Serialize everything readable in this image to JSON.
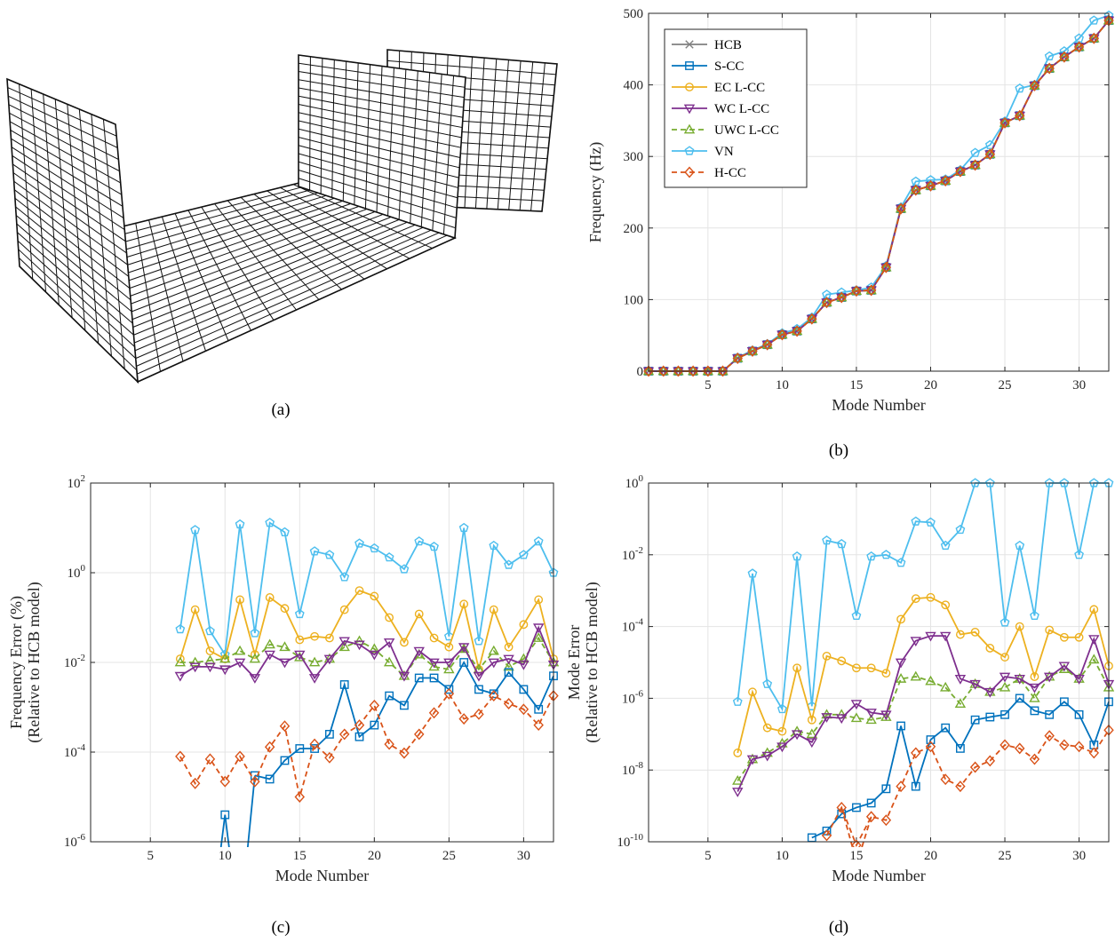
{
  "captions": {
    "a": "(a)",
    "b": "(b)",
    "c": "(c)",
    "d": "(d)"
  },
  "chart_data": [
    {
      "id": "b",
      "type": "line",
      "xlabel": "Mode Number",
      "ylabel": "Frequency (Hz)",
      "xlim": [
        1,
        32
      ],
      "ylim": [
        0,
        500
      ],
      "xticks": [
        5,
        10,
        15,
        20,
        25,
        30
      ],
      "yticks": [
        0,
        100,
        200,
        300,
        400,
        500
      ],
      "grid": true,
      "legend_position": "top-left",
      "x": [
        1,
        2,
        3,
        4,
        5,
        6,
        7,
        8,
        9,
        10,
        11,
        12,
        13,
        14,
        15,
        16,
        17,
        18,
        19,
        20,
        21,
        22,
        23,
        24,
        25,
        26,
        27,
        28,
        29,
        30,
        31,
        32
      ],
      "series": [
        {
          "name": "HCB",
          "color": "#808080",
          "marker": "x",
          "dash": false,
          "values": [
            0,
            0,
            0,
            0,
            0,
            0,
            18,
            28,
            37,
            51,
            56,
            73,
            96,
            103,
            112,
            113,
            145,
            227,
            253,
            259,
            266,
            279,
            288,
            303,
            347,
            357,
            399,
            423,
            439,
            453,
            465,
            490
          ]
        },
        {
          "name": "S-CC",
          "color": "#0072bd",
          "marker": "square",
          "dash": false,
          "values": [
            0,
            0,
            0,
            0,
            0,
            0,
            18,
            28,
            37,
            51,
            56,
            73,
            96,
            103,
            112,
            113,
            145,
            227,
            253,
            259,
            266,
            279,
            288,
            303,
            347,
            357,
            399,
            423,
            439,
            453,
            465,
            490
          ]
        },
        {
          "name": "EC L-CC",
          "color": "#edb120",
          "marker": "circle",
          "dash": false,
          "values": [
            0,
            0,
            0,
            0,
            0,
            0,
            18,
            28,
            37,
            51,
            56,
            73,
            96,
            103,
            112,
            113,
            145,
            227,
            253,
            259,
            266,
            279,
            288,
            303,
            347,
            357,
            399,
            423,
            439,
            453,
            465,
            490
          ]
        },
        {
          "name": "WC L-CC",
          "color": "#7e2f8e",
          "marker": "triangle-down",
          "dash": false,
          "values": [
            0,
            0,
            0,
            0,
            0,
            0,
            18,
            28,
            37,
            51,
            56,
            73,
            96,
            103,
            112,
            113,
            145,
            227,
            253,
            259,
            266,
            279,
            288,
            303,
            347,
            357,
            399,
            423,
            439,
            453,
            465,
            490
          ]
        },
        {
          "name": "UWC L-CC",
          "color": "#77ac30",
          "marker": "triangle-up",
          "dash": true,
          "values": [
            0,
            0,
            0,
            0,
            0,
            0,
            18,
            28,
            37,
            51,
            56,
            73,
            96,
            103,
            112,
            113,
            145,
            227,
            253,
            259,
            266,
            279,
            288,
            303,
            347,
            357,
            399,
            423,
            439,
            453,
            465,
            490
          ]
        },
        {
          "name": "VN",
          "color": "#4dbeee",
          "marker": "pentagon",
          "dash": false,
          "values": [
            0,
            0,
            0,
            0,
            0,
            0,
            19,
            29,
            38,
            53,
            59,
            75,
            107,
            110,
            113,
            117,
            147,
            229,
            265,
            267,
            268,
            281,
            305,
            316,
            349,
            395,
            400,
            440,
            447,
            465,
            490,
            497
          ]
        },
        {
          "name": "H-CC",
          "color": "#d95319",
          "marker": "diamond",
          "dash": true,
          "values": [
            0,
            0,
            0,
            0,
            0,
            0,
            18,
            28,
            37,
            51,
            56,
            73,
            96,
            103,
            112,
            113,
            145,
            227,
            253,
            259,
            266,
            279,
            288,
            303,
            347,
            357,
            399,
            423,
            439,
            453,
            465,
            490
          ]
        }
      ]
    },
    {
      "id": "c",
      "type": "line",
      "xlabel": "Mode Number",
      "ylabel": "Frequency Error (%)",
      "ylabel2": "(Relative to HCB model)",
      "yscale": "log",
      "xlim": [
        1,
        32
      ],
      "ylim": [
        1e-06,
        100
      ],
      "xticks": [
        5,
        10,
        15,
        20,
        25,
        30
      ],
      "yticks": [
        -6,
        -4,
        -2,
        0,
        2
      ],
      "grid": true,
      "x": [
        7,
        8,
        9,
        10,
        11,
        12,
        13,
        14,
        15,
        16,
        17,
        18,
        19,
        20,
        21,
        22,
        23,
        24,
        25,
        26,
        27,
        28,
        29,
        30,
        31,
        32
      ],
      "series": [
        {
          "name": "S-CC",
          "color": "#0072bd",
          "marker": "square",
          "dash": false,
          "values": [
            null,
            null,
            null,
            4e-06,
            null,
            3e-05,
            2.5e-05,
            6.5e-05,
            0.00012,
            0.00012,
            0.00025,
            0.0032,
            0.00022,
            0.0004,
            0.0018,
            0.0011,
            0.0045,
            0.0045,
            0.0025,
            0.01,
            0.0025,
            0.002,
            0.006,
            0.0025,
            0.0009,
            0.005
          ]
        },
        {
          "name": "EC L-CC",
          "color": "#edb120",
          "marker": "circle",
          "dash": false,
          "values": [
            0.012,
            0.15,
            0.018,
            0.012,
            0.25,
            0.015,
            0.28,
            0.16,
            0.032,
            0.038,
            0.035,
            0.15,
            0.4,
            0.3,
            0.1,
            0.028,
            0.12,
            0.035,
            0.022,
            0.2,
            0.007,
            0.15,
            0.022,
            0.07,
            0.25,
            0.012
          ]
        },
        {
          "name": "WC L-CC",
          "color": "#7e2f8e",
          "marker": "triangle-down",
          "dash": false,
          "values": [
            0.005,
            0.008,
            0.008,
            0.007,
            0.01,
            0.0045,
            0.015,
            0.01,
            0.015,
            0.0045,
            0.012,
            0.03,
            0.025,
            0.015,
            0.028,
            0.005,
            0.018,
            0.01,
            0.01,
            0.022,
            0.005,
            0.01,
            0.012,
            0.009,
            0.06,
            0.009
          ]
        },
        {
          "name": "UWC L-CC",
          "color": "#77ac30",
          "marker": "triangle-up",
          "dash": true,
          "values": [
            0.01,
            0.01,
            0.011,
            0.012,
            0.018,
            0.012,
            0.025,
            0.022,
            0.013,
            0.01,
            0.012,
            0.022,
            0.03,
            0.02,
            0.01,
            0.005,
            0.015,
            0.008,
            0.007,
            0.02,
            0.007,
            0.018,
            0.008,
            0.012,
            0.035,
            0.01
          ]
        },
        {
          "name": "VN",
          "color": "#4dbeee",
          "marker": "pentagon",
          "dash": false,
          "values": [
            0.055,
            9,
            0.05,
            0.015,
            12,
            0.045,
            13,
            8,
            0.12,
            3,
            2.5,
            0.8,
            4.5,
            3.5,
            2.2,
            1.2,
            5,
            3.8,
            0.038,
            10,
            0.03,
            4,
            1.5,
            2.5,
            5,
            1
          ]
        },
        {
          "name": "H-CC",
          "color": "#d95319",
          "marker": "diamond",
          "dash": true,
          "values": [
            8e-05,
            2e-05,
            7e-05,
            2.2e-05,
            8e-05,
            2.2e-05,
            0.00013,
            0.00038,
            1e-05,
            0.00015,
            7.5e-05,
            0.00025,
            0.0004,
            0.0011,
            0.00015,
            9.5e-05,
            0.00025,
            0.00075,
            0.002,
            0.00055,
            0.0007,
            0.0018,
            0.0012,
            0.0009,
            0.0004,
            0.0018
          ]
        }
      ]
    },
    {
      "id": "d",
      "type": "line",
      "xlabel": "Mode Number",
      "ylabel": "Mode Error",
      "ylabel2": "(Relative to HCB model)",
      "yscale": "log",
      "xlim": [
        1,
        32
      ],
      "ylim": [
        1e-10,
        1
      ],
      "xticks": [
        5,
        10,
        15,
        20,
        25,
        30
      ],
      "yticks": [
        -10,
        -8,
        -6,
        -4,
        -2,
        0
      ],
      "grid": true,
      "x": [
        7,
        8,
        9,
        10,
        11,
        12,
        13,
        14,
        15,
        16,
        17,
        18,
        19,
        20,
        21,
        22,
        23,
        24,
        25,
        26,
        27,
        28,
        29,
        30,
        31,
        32
      ],
      "series": [
        {
          "name": "S-CC",
          "color": "#0072bd",
          "marker": "square",
          "dash": false,
          "values": [
            null,
            null,
            null,
            null,
            null,
            1.3e-10,
            2e-10,
            6e-10,
            9e-10,
            1.2e-09,
            3e-09,
            1.7e-07,
            3.5e-09,
            7e-08,
            1.5e-07,
            4e-08,
            2.5e-07,
            3e-07,
            3.5e-07,
            1e-06,
            4.5e-07,
            3.5e-07,
            8e-07,
            3.5e-07,
            5e-08,
            8e-07
          ]
        },
        {
          "name": "EC L-CC",
          "color": "#edb120",
          "marker": "circle",
          "dash": false,
          "values": [
            3e-08,
            1.5e-06,
            1.5e-07,
            1.2e-07,
            7e-06,
            2.5e-07,
            1.5e-05,
            1.1e-05,
            7e-06,
            7e-06,
            5e-06,
            0.00016,
            0.0006,
            0.00065,
            0.0004,
            6e-05,
            7e-05,
            2.5e-05,
            1.4e-05,
            0.0001,
            4e-06,
            8e-05,
            5e-05,
            5e-05,
            0.0003,
            8e-06
          ]
        },
        {
          "name": "WC L-CC",
          "color": "#7e2f8e",
          "marker": "triangle-down",
          "dash": false,
          "values": [
            2.5e-09,
            2e-08,
            2.5e-08,
            4.5e-08,
            1e-07,
            6e-08,
            3e-07,
            2.8e-07,
            7e-07,
            4e-07,
            3.5e-07,
            1e-05,
            4e-05,
            5.5e-05,
            5.5e-05,
            3.5e-06,
            2.5e-06,
            1.5e-06,
            4e-06,
            3.5e-06,
            2e-06,
            4e-06,
            8e-06,
            3.5e-06,
            4.5e-05,
            2.5e-06
          ]
        },
        {
          "name": "UWC L-CC",
          "color": "#77ac30",
          "marker": "triangle-up",
          "dash": true,
          "values": [
            5e-09,
            2e-08,
            3e-08,
            5.5e-08,
            1.2e-07,
            1e-07,
            3.5e-07,
            3.5e-07,
            2.8e-07,
            2.5e-07,
            3e-07,
            3.5e-06,
            4e-06,
            3e-06,
            2e-06,
            7e-07,
            2.5e-06,
            1.5e-06,
            2e-06,
            3.5e-06,
            1e-06,
            4e-06,
            6.5e-06,
            3.5e-06,
            1.2e-05,
            2e-06
          ]
        },
        {
          "name": "VN",
          "color": "#4dbeee",
          "marker": "pentagon",
          "dash": false,
          "values": [
            8e-07,
            0.003,
            2.5e-06,
            5e-07,
            0.009,
            6e-07,
            0.025,
            0.02,
            0.0002,
            0.009,
            0.01,
            0.006,
            0.085,
            0.08,
            0.018,
            0.05,
            1,
            1,
            0.00013,
            0.018,
            0.0002,
            1,
            1,
            0.01,
            1,
            1
          ]
        },
        {
          "name": "H-CC",
          "color": "#d95319",
          "marker": "diamond",
          "dash": true,
          "values": [
            null,
            null,
            null,
            null,
            null,
            null,
            1.5e-10,
            9e-10,
            8e-11,
            5e-10,
            4e-10,
            3.5e-09,
            3e-08,
            4.5e-08,
            5.5e-09,
            3.5e-09,
            1.2e-08,
            1.8e-08,
            5e-08,
            4e-08,
            2e-08,
            9e-08,
            5e-08,
            4.5e-08,
            3e-08,
            1.3e-07
          ]
        }
      ]
    }
  ]
}
